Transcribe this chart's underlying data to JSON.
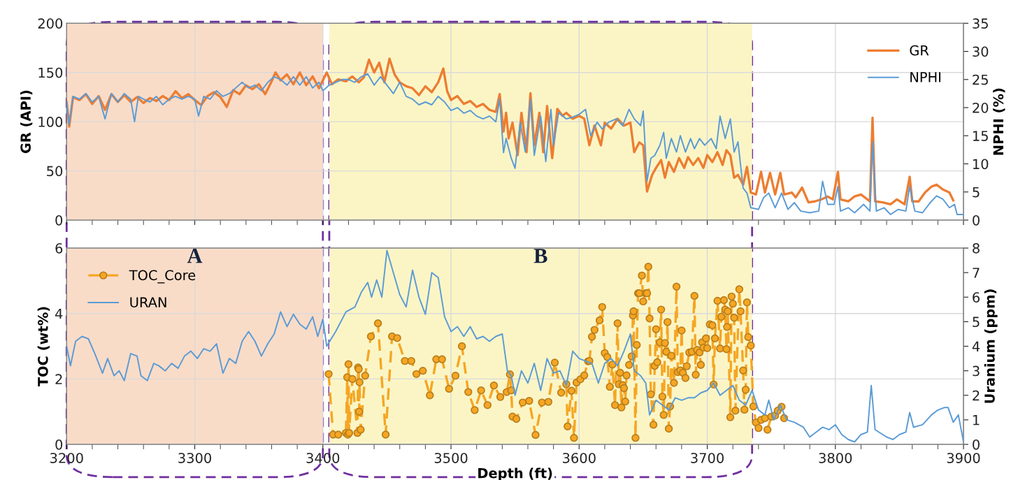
{
  "chart_data": [
    {
      "type": "line",
      "ylabel": "GR (API)",
      "y2label": "NPHI (%)",
      "xlim": [
        3200,
        3900
      ],
      "xticks": [
        3200,
        {
          "value": 3220,
          "label": null
        },
        {
          "value": 3240,
          "label": null
        },
        {
          "value": 3260,
          "label": null
        },
        {
          "value": 3280,
          "label": null
        },
        3300,
        {
          "value": 3320,
          "label": null
        },
        {
          "value": 3340,
          "label": null
        },
        {
          "value": 3360,
          "label": null
        },
        {
          "value": 3380,
          "label": null
        },
        3400,
        {
          "value": 3420,
          "label": null
        },
        {
          "value": 3440,
          "label": null
        },
        {
          "value": 3460,
          "label": null
        },
        {
          "value": 3480,
          "label": null
        },
        3500,
        {
          "value": 3520,
          "label": null
        },
        {
          "value": 3540,
          "label": null
        },
        {
          "value": 3560,
          "label": null
        },
        {
          "value": 3580,
          "label": null
        },
        3600,
        {
          "value": 3620,
          "label": null
        },
        {
          "value": 3640,
          "label": null
        },
        {
          "value": 3660,
          "label": null
        },
        {
          "value": 3680,
          "label": null
        },
        3700,
        {
          "value": 3720,
          "label": null
        },
        {
          "value": 3740,
          "label": null
        },
        {
          "value": 3760,
          "label": null
        },
        {
          "value": 3780,
          "label": null
        },
        3800,
        {
          "value": 3820,
          "label": null
        },
        {
          "value": 3840,
          "label": null
        },
        {
          "value": 3860,
          "label": null
        },
        {
          "value": 3880,
          "label": null
        },
        3900
      ],
      "ylim": [
        0,
        200
      ],
      "yticks": [
        0,
        50,
        100,
        150,
        200
      ],
      "y2lim": [
        0,
        35
      ],
      "y2ticks": [
        0,
        5,
        10,
        15,
        20,
        25,
        30,
        35
      ],
      "tick_labels": "y",
      "grid": true,
      "legend": "top right",
      "bands": [
        {
          "axis": "x",
          "from": 3200,
          "to": 3400,
          "color": "#f9dcc8"
        },
        {
          "axis": "x",
          "from": 3405,
          "to": 3735,
          "color": "#fbf5c6"
        }
      ],
      "series": [
        {
          "name": "GR",
          "color": "#ed7d31",
          "x": [
            3200,
            3202,
            3205,
            3210,
            3215,
            3220,
            3225,
            3230,
            3235,
            3240,
            3245,
            3250,
            3255,
            3260,
            3265,
            3270,
            3275,
            3280,
            3285,
            3290,
            3295,
            3300,
            3305,
            3310,
            3315,
            3320,
            3325,
            3330,
            3335,
            3340,
            3345,
            3350,
            3355,
            3360,
            3363,
            3367,
            3372,
            3377,
            3382,
            3387,
            3392,
            3397,
            3400,
            3403,
            3407,
            3412,
            3418,
            3423,
            3428,
            3432,
            3436,
            3440,
            3444,
            3448,
            3452,
            3456,
            3460,
            3465,
            3470,
            3475,
            3480,
            3485,
            3490,
            3494,
            3497,
            3500,
            3505,
            3510,
            3515,
            3520,
            3525,
            3530,
            3535,
            3538,
            3541,
            3543,
            3545,
            3548,
            3552,
            3555,
            3559,
            3562,
            3565,
            3569,
            3572,
            3575,
            3579,
            3583,
            3587,
            3590,
            3595,
            3600,
            3604,
            3608,
            3612,
            3617,
            3620,
            3625,
            3630,
            3635,
            3640,
            3643,
            3647,
            3650,
            3653,
            3657,
            3660,
            3664,
            3667,
            3670,
            3674,
            3678,
            3682,
            3685,
            3689,
            3693,
            3697,
            3700,
            3704,
            3708,
            3712,
            3715,
            3718,
            3721,
            3724,
            3728,
            3731,
            3734,
            3738,
            3742,
            3745,
            3749,
            3753,
            3757,
            3760,
            3766,
            3769,
            3774,
            3779,
            3784,
            3789,
            3794,
            3798,
            3802,
            3804,
            3810,
            3815,
            3820,
            3827,
            3829,
            3831,
            3837,
            3843,
            3848,
            3854,
            3858,
            3860,
            3865,
            3870,
            3875,
            3879,
            3884,
            3889,
            3892
          ],
          "values": [
            120,
            95,
            125,
            122,
            128,
            118,
            126,
            112,
            128,
            120,
            127,
            120,
            125,
            119,
            124,
            121,
            126,
            122,
            131,
            124,
            128,
            122,
            117,
            126,
            130,
            125,
            115,
            132,
            128,
            137,
            133,
            138,
            128,
            141,
            150,
            142,
            148,
            138,
            150,
            137,
            146,
            134,
            142,
            150,
            138,
            143,
            141,
            146,
            140,
            145,
            163,
            150,
            160,
            140,
            164,
            148,
            140,
            136,
            134,
            127,
            136,
            130,
            140,
            154,
            131,
            122,
            126,
            118,
            121,
            115,
            118,
            112,
            110,
            128,
            90,
            109,
            83,
            99,
            66,
            109,
            69,
            129,
            76,
            109,
            69,
            116,
            63,
            113,
            106,
            109,
            103,
            106,
            103,
            76,
            96,
            76,
            99,
            93,
            103,
            96,
            99,
            69,
            79,
            76,
            29,
            46,
            53,
            61,
            43,
            59,
            49,
            63,
            53,
            64,
            56,
            63,
            53,
            66,
            59,
            69,
            56,
            71,
            66,
            43,
            46,
            36,
            54,
            28,
            26,
            49,
            28,
            48,
            26,
            48,
            26,
            28,
            23,
            33,
            18,
            19,
            21,
            24,
            21,
            49,
            21,
            19,
            24,
            26,
            19,
            104,
            19,
            18,
            16,
            21,
            16,
            44,
            19,
            19,
            28,
            34,
            36,
            31,
            28,
            20
          ]
        },
        {
          "name": "NPHI",
          "color": "#5b9bd5",
          "axis": "y2",
          "x": [
            3200,
            3202,
            3205,
            3210,
            3215,
            3220,
            3225,
            3230,
            3235,
            3240,
            3245,
            3250,
            3253,
            3256,
            3260,
            3265,
            3270,
            3275,
            3280,
            3285,
            3290,
            3295,
            3300,
            3303,
            3307,
            3312,
            3317,
            3322,
            3327,
            3332,
            3337,
            3342,
            3347,
            3352,
            3357,
            3362,
            3367,
            3372,
            3377,
            3382,
            3387,
            3392,
            3397,
            3400,
            3405,
            3410,
            3415,
            3420,
            3425,
            3430,
            3435,
            3440,
            3445,
            3450,
            3455,
            3460,
            3465,
            3470,
            3475,
            3480,
            3485,
            3490,
            3495,
            3500,
            3505,
            3510,
            3515,
            3520,
            3525,
            3530,
            3535,
            3538,
            3541,
            3543,
            3547,
            3550,
            3554,
            3558,
            3562,
            3565,
            3570,
            3574,
            3578,
            3580,
            3584,
            3590,
            3595,
            3600,
            3605,
            3609,
            3614,
            3618,
            3623,
            3629,
            3634,
            3639,
            3643,
            3648,
            3650,
            3653,
            3656,
            3659,
            3663,
            3666,
            3668,
            3672,
            3676,
            3679,
            3683,
            3687,
            3690,
            3694,
            3698,
            3703,
            3707,
            3710,
            3714,
            3718,
            3721,
            3724,
            3728,
            3731,
            3734,
            3740,
            3744,
            3748,
            3753,
            3758,
            3763,
            3768,
            3773,
            3780,
            3787,
            3790,
            3794,
            3799,
            3802,
            3804,
            3810,
            3815,
            3822,
            3827,
            3829,
            3832,
            3838,
            3843,
            3849,
            3855,
            3858,
            3862,
            3868,
            3874,
            3879,
            3884,
            3889,
            3893,
            3895,
            3900
          ],
          "values": [
            21,
            17,
            22,
            21.5,
            22.5,
            21,
            22,
            18,
            22.5,
            21,
            22.5,
            21.5,
            17.5,
            22,
            21.5,
            21,
            22,
            20.5,
            21.5,
            22,
            21.5,
            22,
            21.5,
            18.5,
            22,
            21.5,
            23,
            22,
            22.5,
            23.5,
            24.5,
            23.5,
            24,
            23,
            24.5,
            25.5,
            25,
            24,
            25.5,
            24,
            25.5,
            23.5,
            24.5,
            23,
            24,
            24.5,
            25,
            25,
            24.5,
            25.5,
            26,
            24,
            25.5,
            24,
            22.5,
            24.5,
            22,
            21.5,
            20.5,
            21,
            20.5,
            22,
            21,
            19.5,
            20,
            19,
            19.5,
            18.5,
            18,
            18.5,
            17.5,
            21.5,
            12,
            14.5,
            11,
            9.2,
            17.4,
            12.1,
            21.5,
            11.5,
            18.5,
            10.4,
            19.7,
            13.3,
            19.1,
            18,
            18.3,
            18.8,
            19.7,
            15,
            17.4,
            16.2,
            17.4,
            18,
            16.8,
            19.7,
            18,
            16.8,
            19.4,
            6.9,
            11,
            11.5,
            13.3,
            15.6,
            11,
            14.5,
            12.1,
            15,
            12.1,
            14.5,
            12.7,
            14.5,
            13.3,
            14.5,
            12.7,
            18.5,
            14.5,
            18,
            12.1,
            13.9,
            5.7,
            4.8,
            2.2,
            1.9,
            4,
            4.8,
            2.2,
            4.8,
            1.9,
            3.1,
            1.6,
            1.3,
            1.6,
            6.9,
            2.8,
            2.8,
            6,
            1.6,
            2.2,
            1.3,
            2.8,
            1.6,
            13.9,
            1.6,
            2.2,
            1,
            1.9,
            1.6,
            6,
            1.6,
            1.3,
            3.1,
            4.3,
            3.7,
            2.2,
            2.8,
            1,
            1
          ]
        }
      ]
    },
    {
      "type": "line",
      "xlabel": "Depth (ft)",
      "ylabel": "TOC (wt%)",
      "y2label": "Uranium (ppm)",
      "xlim": [
        3200,
        3900
      ],
      "xticks": [
        3200,
        {
          "value": 3220,
          "label": null
        },
        {
          "value": 3240,
          "label": null
        },
        {
          "value": 3260,
          "label": null
        },
        {
          "value": 3280,
          "label": null
        },
        3300,
        {
          "value": 3320,
          "label": null
        },
        {
          "value": 3340,
          "label": null
        },
        {
          "value": 3360,
          "label": null
        },
        {
          "value": 3380,
          "label": null
        },
        3400,
        {
          "value": 3420,
          "label": null
        },
        {
          "value": 3440,
          "label": null
        },
        {
          "value": 3460,
          "label": null
        },
        {
          "value": 3480,
          "label": null
        },
        3500,
        {
          "value": 3520,
          "label": null
        },
        {
          "value": 3540,
          "label": null
        },
        {
          "value": 3560,
          "label": null
        },
        {
          "value": 3580,
          "label": null
        },
        3600,
        {
          "value": 3620,
          "label": null
        },
        {
          "value": 3640,
          "label": null
        },
        {
          "value": 3660,
          "label": null
        },
        {
          "value": 3680,
          "label": null
        },
        3700,
        {
          "value": 3720,
          "label": null
        },
        {
          "value": 3740,
          "label": null
        },
        {
          "value": 3760,
          "label": null
        },
        {
          "value": 3780,
          "label": null
        },
        3800,
        {
          "value": 3820,
          "label": null
        },
        {
          "value": 3840,
          "label": null
        },
        {
          "value": 3860,
          "label": null
        },
        {
          "value": 3880,
          "label": null
        },
        3900
      ],
      "ylim": [
        0,
        6
      ],
      "yticks": [
        0,
        2,
        4,
        6
      ],
      "y2lim": [
        0,
        8
      ],
      "y2ticks": [
        0,
        1,
        2,
        3,
        4,
        5,
        6,
        7,
        8
      ],
      "grid": true,
      "legend": "top left",
      "bands": [
        {
          "axis": "x",
          "from": 3200,
          "to": 3400,
          "label": "A",
          "color": "#f9dcc8"
        },
        {
          "axis": "x",
          "from": 3405,
          "to": 3735,
          "label": "B",
          "color": "#fbf5c6"
        }
      ],
      "series": [
        {
          "name": "TOC_Core",
          "color": "#f5a623",
          "marker": "circle",
          "line_style": "dashed",
          "x": [
            3404.5,
            3408,
            3412,
            3418,
            3419,
            3419.5,
            3420,
            3420.5,
            3423,
            3427,
            3427.5,
            3428,
            3428.3,
            3428.6,
            3429.5,
            3433,
            3437.5,
            3443,
            3449,
            3454,
            3458,
            3464,
            3469,
            3473,
            3478,
            3483.5,
            3488.5,
            3493,
            3498.5,
            3503.5,
            3508.5,
            3513.5,
            3518.5,
            3523.5,
            3528.5,
            3533.5,
            3538.5,
            3543.5,
            3546,
            3547,
            3548,
            3551,
            3556,
            3561,
            3566,
            3571,
            3576,
            3581,
            3586,
            3590,
            3591,
            3594,
            3596,
            3598,
            3601,
            3604,
            3607,
            3608,
            3610,
            3612,
            3616,
            3618,
            3620,
            3622,
            3624,
            3626,
            3628,
            3630,
            3631,
            3632,
            3633,
            3634,
            3635,
            3636,
            3637,
            3639,
            3641,
            3642,
            3642.5,
            3644,
            3645,
            3646,
            3647,
            3649,
            3650,
            3652,
            3653,
            3654,
            3655,
            3656,
            3658,
            3659,
            3660,
            3661,
            3663,
            3664,
            3665,
            3666,
            3667,
            3668,
            3669,
            3670,
            3671,
            3672,
            3674,
            3676,
            3677,
            3679,
            3680,
            3681,
            3683,
            3684,
            3686,
            3688,
            3690,
            3691,
            3692,
            3694,
            3695,
            3696,
            3697,
            3699,
            3700,
            3702,
            3704,
            3705,
            3706,
            3708,
            3710,
            3711,
            3713,
            3714,
            3715,
            3715.5,
            3716,
            3718,
            3719,
            3720,
            3721,
            3722,
            3725,
            3726,
            3728,
            3729,
            3730,
            3731,
            3732,
            3734,
            3736,
            3738,
            3740,
            3742,
            3745,
            3747,
            3750,
            3753,
            3755,
            3758,
            3760
          ],
          "values": [
            2.15,
            0.3,
            0.3,
            0.35,
            2.05,
            0.3,
            2.45,
            0.35,
            2.0,
            0.35,
            2.35,
            2.3,
            1.0,
            1.9,
            0.45,
            2.1,
            3.3,
            3.7,
            0.3,
            3.3,
            3.25,
            2.55,
            2.55,
            2.15,
            2.25,
            1.5,
            2.6,
            2.6,
            1.7,
            2.1,
            3.0,
            1.6,
            1.05,
            1.65,
            1.2,
            1.8,
            1.45,
            1.6,
            2.14,
            1.65,
            0.85,
            0.78,
            1.28,
            1.33,
            0.29,
            1.28,
            1.3,
            2.5,
            1.58,
            1.84,
            0.55,
            1.64,
            0.2,
            1.89,
            1.99,
            2.11,
            2.54,
            2.55,
            3.29,
            3.5,
            3.79,
            4.2,
            2.79,
            2.67,
            1.76,
            2.44,
            1.2,
            3.7,
            1.84,
            2.19,
            1.13,
            1.81,
            1.72,
            1.31,
            2.11,
            2.43,
            2.69,
            3.94,
            4.07,
            0.2,
            3.04,
            4.62,
            4.62,
            5.16,
            4.37,
            4.62,
            4.62,
            5.43,
            3.85,
            1.53,
            0.6,
            2.4,
            3.52,
            2.51,
            3.12,
            4.12,
            1.46,
            0.9,
            3.1,
            2.83,
            3.74,
            0.48,
            1.16,
            2.71,
            1.88,
            4.82,
            2.21,
            2.26,
            3.48,
            2.19,
            2.03,
            2.39,
            2.81,
            2.83,
            4.54,
            2.13,
            2.89,
            2.81,
            2.43,
            3.12,
            2.96,
            3.24,
            2.94,
            3.67,
            3.64,
            1.83,
            3.24,
            4.39,
            2.93,
            3.9,
            4.41,
            4.12,
            2.91,
            3.59,
            4.07,
            0.83,
            4.52,
            4.3,
            3.87,
            1.03,
            4.74,
            4.07,
            2.26,
            1.06,
            1.67,
            4.34,
            3.28,
            3.02,
            1.16,
            0.67,
            0.5,
            0.75,
            0.8,
            0.45,
            0.85,
            0.88,
            1.03,
            1.15,
            0.8
          ]
        },
        {
          "name": "URAN",
          "color": "#5b9bd5",
          "axis": "y2",
          "x": [
            3200,
            3203,
            3207,
            3212,
            3217,
            3222,
            3228,
            3232,
            3237,
            3241,
            3245,
            3250,
            3255,
            3258,
            3263,
            3268,
            3272,
            3277,
            3282,
            3287,
            3292,
            3297,
            3302,
            3307,
            3312,
            3317,
            3322,
            3327,
            3332,
            3337,
            3342,
            3347,
            3352,
            3357,
            3362,
            3367,
            3372,
            3377,
            3382,
            3387,
            3392,
            3396,
            3400,
            3403,
            3410,
            3418,
            3425,
            3430,
            3435,
            3438,
            3442,
            3446,
            3450,
            3455,
            3460,
            3465,
            3470,
            3475,
            3480,
            3485,
            3490,
            3495,
            3500,
            3505,
            3510,
            3515,
            3520,
            3525,
            3530,
            3535,
            3540,
            3544,
            3547,
            3550,
            3555,
            3560,
            3565,
            3570,
            3575,
            3580,
            3585,
            3590,
            3595,
            3600,
            3605,
            3610,
            3615,
            3620,
            3625,
            3630,
            3635,
            3640,
            3643,
            3648,
            3652,
            3655,
            3660,
            3665,
            3670,
            3675,
            3680,
            3685,
            3690,
            3695,
            3700,
            3705,
            3710,
            3715,
            3720,
            3725,
            3730,
            3735,
            3740,
            3745,
            3748,
            3752,
            3757,
            3762,
            3768,
            3775,
            3780,
            3785,
            3790,
            3795,
            3800,
            3805,
            3810,
            3815,
            3820,
            3825,
            3828,
            3831,
            3840,
            3845,
            3850,
            3855,
            3858,
            3861,
            3868,
            3875,
            3880,
            3885,
            3888,
            3892,
            3896,
            3900
          ],
          "values": [
            4.0,
            3.2,
            4.2,
            4.4,
            4.3,
            3.7,
            2.9,
            3.5,
            2.8,
            3.0,
            2.6,
            3.7,
            3.6,
            2.8,
            2.6,
            3.3,
            3.2,
            3.0,
            3.3,
            3.1,
            3.6,
            3.8,
            3.5,
            3.9,
            3.8,
            4.1,
            2.9,
            3.5,
            3.3,
            4.2,
            4.6,
            4.2,
            3.6,
            4.1,
            4.5,
            5.4,
            4.8,
            5.3,
            4.9,
            4.7,
            5.2,
            4.4,
            5.1,
            4.0,
            4.6,
            5.4,
            5.6,
            6.2,
            6.6,
            6.0,
            6.7,
            6.0,
            7.9,
            7.0,
            6.1,
            5.6,
            7.1,
            6.0,
            5.3,
            7.0,
            6.8,
            5.2,
            4.6,
            4.8,
            4.4,
            4.8,
            4.3,
            4.4,
            4.2,
            4.4,
            4.5,
            3.0,
            2.8,
            2.0,
            3.0,
            2.5,
            3.3,
            2.2,
            3.5,
            2.9,
            3.0,
            2.4,
            3.8,
            3.5,
            3.4,
            3.3,
            2.5,
            3.3,
            3.5,
            3.2,
            3.8,
            4.5,
            3.0,
            2.8,
            2.5,
            1.2,
            1.8,
            1.6,
            1.4,
            1.9,
            1.8,
            1.9,
            1.9,
            2.1,
            2.2,
            2.5,
            2.0,
            2.2,
            2.4,
            1.8,
            1.6,
            2.2,
            1.4,
            1.2,
            1.8,
            1.0,
            1.6,
            1.0,
            0.9,
            0.7,
            0.3,
            0.5,
            0.7,
            0.6,
            0.8,
            0.4,
            0.2,
            0.1,
            0.4,
            0.5,
            2.4,
            0.6,
            0.3,
            0.2,
            0.4,
            0.5,
            1.3,
            0.7,
            0.8,
            1.2,
            1.4,
            1.5,
            1.5,
            0.9,
            1.2,
            0.1
          ]
        }
      ]
    }
  ]
}
